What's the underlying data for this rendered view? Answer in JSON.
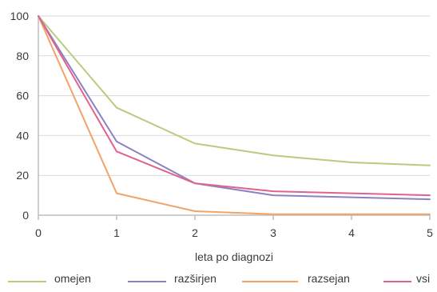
{
  "chart_data": {
    "type": "line",
    "title": "",
    "xlabel": "leta po diagnozi",
    "ylabel": "",
    "x": [
      0,
      1,
      2,
      3,
      4,
      5
    ],
    "x_ticks": [
      "0",
      "1",
      "2",
      "3",
      "4",
      "5"
    ],
    "y_ticks": [
      "0",
      "20",
      "40",
      "60",
      "80",
      "100"
    ],
    "xlim": [
      0,
      5
    ],
    "ylim": [
      0,
      100
    ],
    "grid": "horizontal",
    "legend_position": "bottom",
    "series": [
      {
        "name": "omejen",
        "color": "#b7cc7e",
        "values": [
          100,
          54,
          36,
          30,
          26.5,
          25
        ]
      },
      {
        "name": "razširjen",
        "color": "#8c82c2",
        "values": [
          100,
          37,
          16,
          10,
          9,
          8
        ]
      },
      {
        "name": "razsejan",
        "color": "#f2a36a",
        "values": [
          100,
          11,
          2,
          0.5,
          0.5,
          0.5
        ]
      },
      {
        "name": "vsi",
        "color": "#e2628e",
        "values": [
          100,
          32,
          16,
          12,
          11,
          10
        ]
      }
    ]
  }
}
